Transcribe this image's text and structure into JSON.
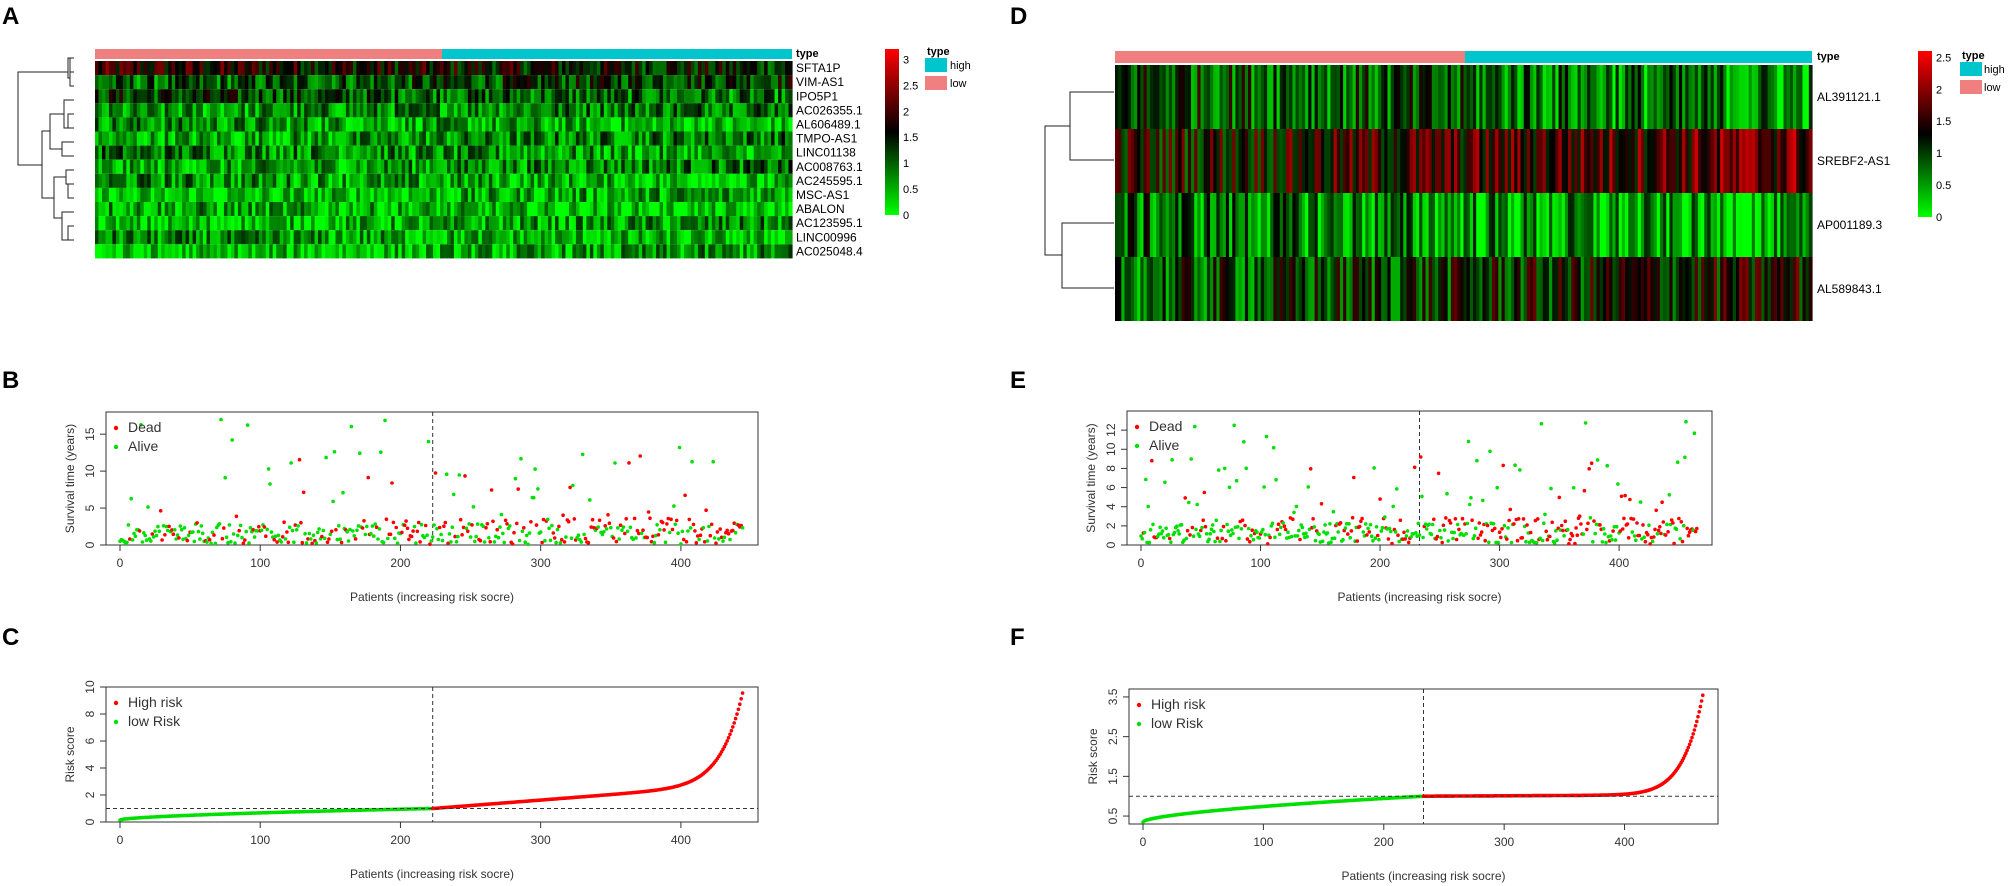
{
  "colors": {
    "high": "#00c5cd",
    "low": "#f08080",
    "red": "#ff0000",
    "green": "#00e000",
    "black": "#000000",
    "axis": "#333333"
  },
  "chart_data": [
    {
      "panel": "A",
      "type": "heatmap",
      "genes": [
        "SFTA1P",
        "VIM-AS1",
        "IPO5P1",
        "AC026355.1",
        "AL606489.1",
        "TMPO-AS1",
        "LINC01138",
        "AC008763.1",
        "AC245595.1",
        "MSC-AS1",
        "ABALON",
        "AC123595.1",
        "LINC00996",
        "AC025048.4"
      ],
      "gene_means": [
        1.6,
        1.15,
        1.05,
        0.8,
        0.55,
        0.7,
        0.7,
        0.7,
        0.55,
        0.45,
        0.4,
        0.5,
        0.5,
        0.45
      ],
      "type_label": "type",
      "legend_title": "type",
      "legend_items": [
        "high",
        "low"
      ],
      "colorbar_ticks": [
        "3",
        "2.5",
        "2",
        "1.5",
        "1",
        "0.5",
        "0"
      ],
      "colorbar_range": [
        0,
        3.2
      ],
      "n_low": 223,
      "n_high": 222
    },
    {
      "panel": "D",
      "type": "heatmap",
      "genes": [
        "AL391121.1",
        "SREBF2-AS1",
        "AP001189.3",
        "AL589843.1"
      ],
      "gene_means": [
        0.8,
        1.55,
        0.55,
        1.1
      ],
      "type_label": "type",
      "legend_title": "type",
      "legend_items": [
        "high",
        "low"
      ],
      "colorbar_ticks": [
        "2.5",
        "2",
        "1.5",
        "1",
        "0.5",
        "0"
      ],
      "colorbar_range": [
        0,
        2.6
      ],
      "n_low": 233,
      "n_high": 233
    },
    {
      "panel": "B",
      "type": "scatter",
      "xlabel": "Patients (increasing risk socre)",
      "ylabel": "Survival time (years)",
      "xticks": [
        "0",
        "100",
        "200",
        "300",
        "400"
      ],
      "yticks": [
        "0",
        "5",
        "10",
        "15"
      ],
      "xlim": [
        0,
        445
      ],
      "ylim": [
        0,
        18
      ],
      "cutoff": 223,
      "legend": [
        "Dead",
        "Alive"
      ],
      "n": 445
    },
    {
      "panel": "E",
      "type": "scatter",
      "xlabel": "Patients (increasing risk socre)",
      "ylabel": "Survival time (years)",
      "xticks": [
        "0",
        "100",
        "200",
        "300",
        "400"
      ],
      "yticks": [
        "0",
        "2",
        "4",
        "6",
        "8",
        "10",
        "12"
      ],
      "xlim": [
        0,
        466
      ],
      "ylim": [
        0,
        14
      ],
      "cutoff": 233,
      "legend": [
        "Dead",
        "Alive"
      ],
      "n": 466
    },
    {
      "panel": "C",
      "type": "scatter",
      "xlabel": "Patients (increasing risk socre)",
      "ylabel": "Risk score",
      "xticks": [
        "0",
        "100",
        "200",
        "300",
        "400"
      ],
      "yticks": [
        "0",
        "2",
        "4",
        "6",
        "8",
        "10"
      ],
      "xlim": [
        0,
        445
      ],
      "ylim": [
        0,
        10
      ],
      "cutoff": 223,
      "threshold": 1.0,
      "legend": [
        "High risk",
        "low Risk"
      ],
      "n": 445
    },
    {
      "panel": "F",
      "type": "scatter",
      "xlabel": "Patients (increasing risk socre)",
      "ylabel": "Risk score",
      "xticks": [
        "0",
        "100",
        "200",
        "300",
        "400"
      ],
      "yticks": [
        "0.5",
        "1.5",
        "2.5",
        "3.5"
      ],
      "xlim": [
        0,
        466
      ],
      "ylim": [
        0.3,
        3.7
      ],
      "cutoff": 233,
      "threshold": 1.0,
      "legend": [
        "High risk",
        "low Risk"
      ],
      "n": 466
    }
  ]
}
